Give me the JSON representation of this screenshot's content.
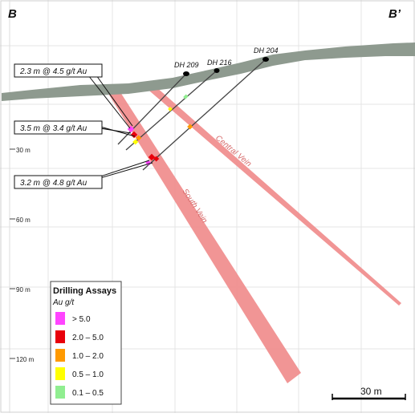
{
  "section": {
    "left_label": "B",
    "right_label": "B’"
  },
  "drill_holes": [
    {
      "name": "DH 209"
    },
    {
      "name": "DH 216"
    },
    {
      "name": "DH 204"
    }
  ],
  "depth_ticks": [
    "30 m",
    "60 m",
    "90 m",
    "120 m"
  ],
  "veins": {
    "central": "Central Vein",
    "south": "South Vein"
  },
  "callouts": [
    "2.3 m @ 4.5 g/t Au",
    "3.5 m @ 3.4 g/t Au",
    "3.2 m @ 4.8 g/t Au"
  ],
  "legend": {
    "title": "Drilling Assays",
    "subtitle": "Au g/t",
    "items": [
      {
        "label": "> 5.0",
        "color": "#ff44ff"
      },
      {
        "label": "2.0 – 5.0",
        "color": "#e8000b"
      },
      {
        "label": "1.0 – 2.0",
        "color": "#ff9a00"
      },
      {
        "label": "0.5 – 1.0",
        "color": "#ffff00"
      },
      {
        "label": "0.1 – 0.5",
        "color": "#90ee90"
      }
    ]
  },
  "scale_bar": {
    "label": "30 m"
  },
  "colors": {
    "topography": "#8e9a8f",
    "vein": "#f08a8a",
    "grid": "#e2e2e2",
    "drill_trace": "#444444"
  }
}
